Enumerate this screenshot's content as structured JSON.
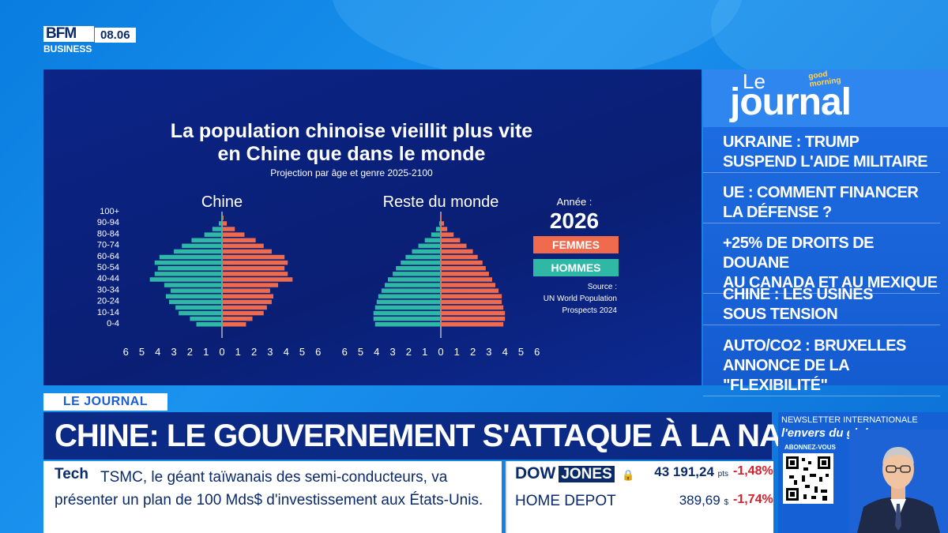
{
  "channel": {
    "logo_top": "BFM",
    "logo_bottom": "BUSINESS",
    "time": "08.06"
  },
  "chart_panel": {
    "title_line1": "La population chinoise vieillit plus vite",
    "title_line2": "en Chine que dans le monde",
    "subtitle": "Projection  par âge et genre 2025-2100",
    "year_label": "Année :",
    "year": "2026",
    "legend_women": "FEMMES",
    "legend_men": "HOMMES",
    "source_line1": "Source :",
    "source_line2": "UN World Population",
    "source_line3": "Prospects 2024",
    "colors": {
      "women": "#f06a4d",
      "men": "#2fb8a6"
    }
  },
  "chart_data": [
    {
      "type": "bar",
      "title": "Chine",
      "orientation": "horizontal-pyramid",
      "categories": [
        "0-4",
        "5-9",
        "10-14",
        "15-19",
        "20-24",
        "25-29",
        "30-34",
        "35-39",
        "40-44",
        "45-49",
        "50-54",
        "55-59",
        "60-64",
        "65-69",
        "70-74",
        "75-79",
        "80-84",
        "85-89",
        "90-94",
        "95-99",
        "100+"
      ],
      "category_tick_labels": [
        "100+",
        "90-94",
        "80-84",
        "70-74",
        "60-64",
        "50-54",
        "40-44",
        "30-34",
        "20-24",
        "10-14",
        "0-4"
      ],
      "series": [
        {
          "name": "HOMMES",
          "values": [
            1.6,
            2.0,
            2.7,
            2.9,
            3.3,
            3.5,
            3.2,
            3.6,
            4.5,
            4.2,
            4.0,
            4.2,
            3.9,
            3.0,
            2.5,
            1.9,
            1.1,
            0.6,
            0.2,
            0.05,
            0.0
          ]
        },
        {
          "name": "FEMMES",
          "values": [
            1.5,
            1.9,
            2.6,
            2.8,
            3.1,
            3.2,
            3.0,
            3.5,
            4.4,
            4.1,
            3.9,
            4.1,
            3.9,
            3.1,
            2.6,
            2.1,
            1.4,
            0.8,
            0.3,
            0.1,
            0.0
          ]
        }
      ],
      "x_ticks": [
        "6",
        "5",
        "4",
        "3",
        "2",
        "1",
        "0",
        "1",
        "2",
        "3",
        "4",
        "5",
        "6"
      ],
      "xlim": [
        -6,
        6
      ]
    },
    {
      "type": "bar",
      "title": "Reste du monde",
      "orientation": "horizontal-pyramid",
      "categories": [
        "0-4",
        "5-9",
        "10-14",
        "15-19",
        "20-24",
        "25-29",
        "30-34",
        "35-39",
        "40-44",
        "45-49",
        "50-54",
        "55-59",
        "60-64",
        "65-69",
        "70-74",
        "75-79",
        "80-84",
        "85-89",
        "90-94",
        "95-99",
        "100+"
      ],
      "category_tick_labels": [
        "100+",
        "90-94",
        "80-84",
        "70-74",
        "60-64",
        "50-54",
        "40-44",
        "30-34",
        "20-24",
        "10-14",
        "0-4"
      ],
      "series": [
        {
          "name": "HOMMES",
          "values": [
            4.1,
            4.2,
            4.2,
            4.1,
            4.0,
            3.9,
            3.7,
            3.5,
            3.3,
            3.0,
            2.8,
            2.5,
            2.2,
            1.8,
            1.4,
            1.0,
            0.6,
            0.3,
            0.1,
            0.0,
            0.0
          ]
        },
        {
          "name": "FEMMES",
          "values": [
            3.9,
            4.0,
            4.0,
            3.9,
            3.8,
            3.8,
            3.6,
            3.4,
            3.2,
            3.0,
            2.8,
            2.6,
            2.3,
            2.0,
            1.6,
            1.2,
            0.8,
            0.4,
            0.2,
            0.05,
            0.0
          ]
        }
      ],
      "x_ticks": [
        "6",
        "5",
        "4",
        "3",
        "2",
        "1",
        "0",
        "1",
        "2",
        "3",
        "4",
        "5",
        "6"
      ],
      "xlim": [
        -6,
        6
      ]
    }
  ],
  "journal": {
    "le": "Le",
    "word": "journal",
    "badge_line1": "good",
    "badge_line2": "morning",
    "items": [
      {
        "line1": "UKRAINE : TRUMP",
        "line2": "SUSPEND L'AIDE MILITAIRE"
      },
      {
        "line1": "UE : COMMENT FINANCER",
        "line2": "LA DÉFENSE ?"
      },
      {
        "line1": "+25% DE DROITS DE DOUANE",
        "line2": "AU CANADA ET AU MEXIQUE"
      },
      {
        "line1": "CHINE : LES USINES",
        "line2": "SOUS TENSION"
      },
      {
        "line1": "AUTO/CO2 : BRUXELLES",
        "line2": "ANNONCE DE LA \"FLEXIBILITÉ\""
      }
    ]
  },
  "lower_third": {
    "tag": "LE JOURNAL",
    "headline": "CHINE: LE GOUVERNEMENT S'ATTAQUE À LA NATALITÉ",
    "ticker_category": "Tech",
    "ticker_text": "TSMC, le géant taïwanais des semi-conducteurs, va présenter un plan de 100 Mds$ d'investissement aux États-Unis."
  },
  "market": {
    "dow_name": "DOW",
    "dow_name2": "JONES",
    "dow_value": "43 191,24",
    "dow_unit": "pts",
    "dow_change": "-1,48%",
    "stock_name": "HOME DEPOT",
    "stock_value": "389,69",
    "stock_unit": "$",
    "stock_change": "-1,74%"
  },
  "newsletter": {
    "title": "NEWSLETTER INTERNATIONALE",
    "name": "l'envers du globe",
    "cta": "ABONNEZ-VOUS"
  }
}
